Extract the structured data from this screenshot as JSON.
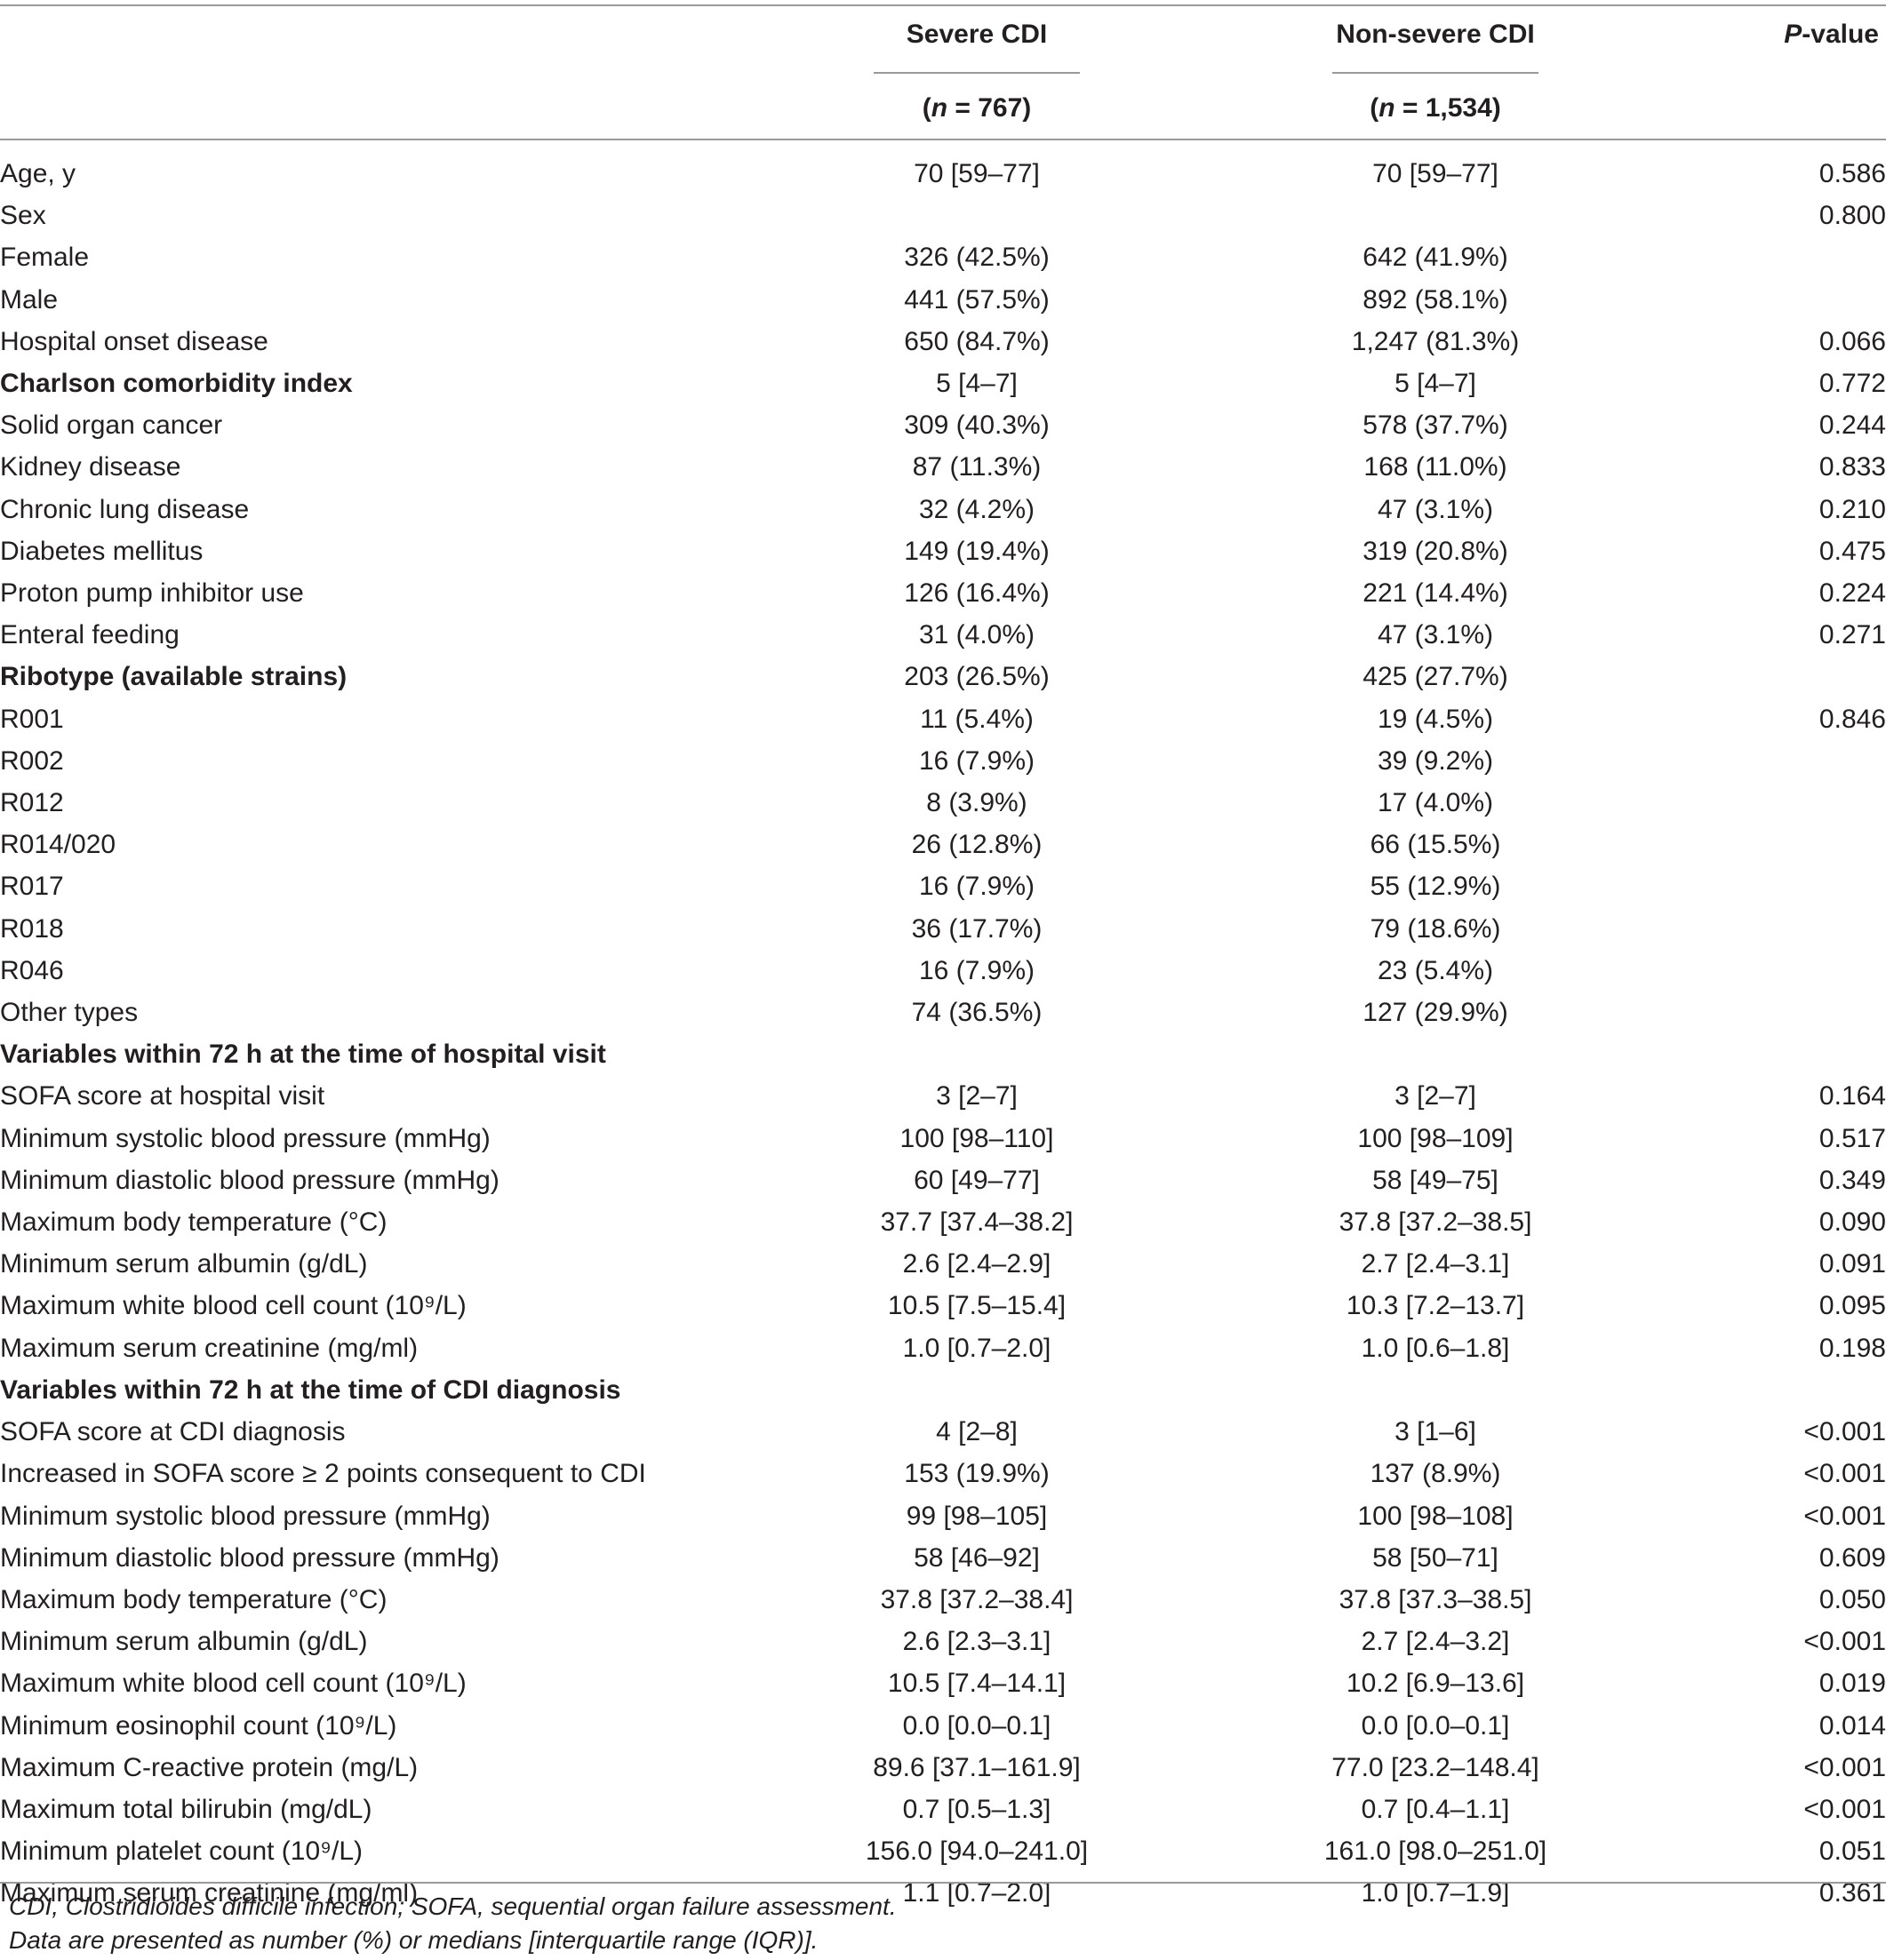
{
  "header": {
    "col_severe": "Severe CDI",
    "col_severe_n": "(n = 767)",
    "col_nonsevere": "Non-severe CDI",
    "col_nonsevere_n": "(n = 1,534)",
    "col_p": "P-value"
  },
  "rows": [
    {
      "label": "Age, y",
      "severe": "70 [59–77]",
      "nonsevere": "70 [59–77]",
      "p": "0.586",
      "bold": false
    },
    {
      "label": "Sex",
      "severe": "",
      "nonsevere": "",
      "p": "0.800",
      "bold": false
    },
    {
      "label": "Female",
      "severe": "326 (42.5%)",
      "nonsevere": "642 (41.9%)",
      "p": "",
      "bold": false
    },
    {
      "label": "Male",
      "severe": "441 (57.5%)",
      "nonsevere": "892 (58.1%)",
      "p": "",
      "bold": false
    },
    {
      "label": "Hospital onset disease",
      "severe": "650 (84.7%)",
      "nonsevere": "1,247 (81.3%)",
      "p": "0.066",
      "bold": false
    },
    {
      "label": "Charlson comorbidity index",
      "severe": "5 [4–7]",
      "nonsevere": "5 [4–7]",
      "p": "0.772",
      "bold": true
    },
    {
      "label": "Solid organ cancer",
      "severe": "309 (40.3%)",
      "nonsevere": "578 (37.7%)",
      "p": "0.244",
      "bold": false
    },
    {
      "label": "Kidney disease",
      "severe": "87 (11.3%)",
      "nonsevere": "168 (11.0%)",
      "p": "0.833",
      "bold": false
    },
    {
      "label": "Chronic lung disease",
      "severe": "32 (4.2%)",
      "nonsevere": "47 (3.1%)",
      "p": "0.210",
      "bold": false
    },
    {
      "label": "Diabetes mellitus",
      "severe": "149 (19.4%)",
      "nonsevere": "319 (20.8%)",
      "p": "0.475",
      "bold": false
    },
    {
      "label": "Proton pump inhibitor use",
      "severe": "126 (16.4%)",
      "nonsevere": "221 (14.4%)",
      "p": "0.224",
      "bold": false
    },
    {
      "label": "Enteral feeding",
      "severe": "31 (4.0%)",
      "nonsevere": "47 (3.1%)",
      "p": "0.271",
      "bold": false
    },
    {
      "label": "Ribotype (available strains)",
      "severe": "203 (26.5%)",
      "nonsevere": "425 (27.7%)",
      "p": "",
      "bold": true
    },
    {
      "label": "R001",
      "severe": "11 (5.4%)",
      "nonsevere": "19 (4.5%)",
      "p": "0.846",
      "bold": false
    },
    {
      "label": "R002",
      "severe": "16 (7.9%)",
      "nonsevere": "39 (9.2%)",
      "p": "",
      "bold": false
    },
    {
      "label": "R012",
      "severe": "8 (3.9%)",
      "nonsevere": "17 (4.0%)",
      "p": "",
      "bold": false
    },
    {
      "label": "R014/020",
      "severe": "26 (12.8%)",
      "nonsevere": "66 (15.5%)",
      "p": "",
      "bold": false
    },
    {
      "label": "R017",
      "severe": "16 (7.9%)",
      "nonsevere": "55 (12.9%)",
      "p": "",
      "bold": false
    },
    {
      "label": "R018",
      "severe": "36 (17.7%)",
      "nonsevere": "79 (18.6%)",
      "p": "",
      "bold": false
    },
    {
      "label": "R046",
      "severe": "16 (7.9%)",
      "nonsevere": "23 (5.4%)",
      "p": "",
      "bold": false
    },
    {
      "label": "Other types",
      "severe": "74 (36.5%)",
      "nonsevere": "127 (29.9%)",
      "p": "",
      "bold": false
    },
    {
      "label": "Variables within 72 h at the time of hospital visit",
      "severe": "",
      "nonsevere": "",
      "p": "",
      "bold": true
    },
    {
      "label": "SOFA score at hospital visit",
      "severe": "3 [2–7]",
      "nonsevere": "3 [2–7]",
      "p": "0.164",
      "bold": false
    },
    {
      "label": "Minimum systolic blood pressure (mmHg)",
      "severe": "100 [98–110]",
      "nonsevere": "100 [98–109]",
      "p": "0.517",
      "bold": false
    },
    {
      "label": "Minimum diastolic blood pressure (mmHg)",
      "severe": "60 [49–77]",
      "nonsevere": "58 [49–75]",
      "p": "0.349",
      "bold": false
    },
    {
      "label": "Maximum body temperature (°C)",
      "severe": "37.7 [37.4–38.2]",
      "nonsevere": "37.8 [37.2–38.5]",
      "p": "0.090",
      "bold": false
    },
    {
      "label": "Minimum serum albumin (g/dL)",
      "severe": "2.6 [2.4–2.9]",
      "nonsevere": "2.7 [2.4–3.1]",
      "p": "0.091",
      "bold": false
    },
    {
      "label": "Maximum white blood cell count (10⁹/L)",
      "severe": "10.5 [7.5–15.4]",
      "nonsevere": "10.3 [7.2–13.7]",
      "p": "0.095",
      "bold": false
    },
    {
      "label": "Maximum serum creatinine (mg/ml)",
      "severe": "1.0 [0.7–2.0]",
      "nonsevere": "1.0 [0.6–1.8]",
      "p": "0.198",
      "bold": false
    },
    {
      "label": "Variables within 72 h at the time of CDI diagnosis",
      "severe": "",
      "nonsevere": "",
      "p": "",
      "bold": true
    },
    {
      "label": "SOFA score at CDI diagnosis",
      "severe": "4 [2–8]",
      "nonsevere": "3 [1–6]",
      "p": "<0.001",
      "bold": false
    },
    {
      "label": "Increased in SOFA score ≥ 2 points consequent to CDI",
      "severe": "153 (19.9%)",
      "nonsevere": "137 (8.9%)",
      "p": "<0.001",
      "bold": false
    },
    {
      "label": "Minimum systolic blood pressure (mmHg)",
      "severe": "99 [98–105]",
      "nonsevere": "100 [98–108]",
      "p": "<0.001",
      "bold": false
    },
    {
      "label": "Minimum diastolic blood pressure (mmHg)",
      "severe": "58 [46–92]",
      "nonsevere": "58 [50–71]",
      "p": "0.609",
      "bold": false
    },
    {
      "label": "Maximum body temperature (°C)",
      "severe": "37.8 [37.2–38.4]",
      "nonsevere": "37.8 [37.3–38.5]",
      "p": "0.050",
      "bold": false
    },
    {
      "label": "Minimum serum albumin (g/dL)",
      "severe": "2.6 [2.3–3.1]",
      "nonsevere": "2.7 [2.4–3.2]",
      "p": "<0.001",
      "bold": false
    },
    {
      "label": "Maximum white blood cell count (10⁹/L)",
      "severe": "10.5 [7.4–14.1]",
      "nonsevere": "10.2 [6.9–13.6]",
      "p": "0.019",
      "bold": false
    },
    {
      "label": "Minimum eosinophil count (10⁹/L)",
      "severe": "0.0 [0.0–0.1]",
      "nonsevere": "0.0 [0.0–0.1]",
      "p": "0.014",
      "bold": false
    },
    {
      "label": "Maximum C-reactive protein (mg/L)",
      "severe": "89.6 [37.1–161.9]",
      "nonsevere": "77.0 [23.2–148.4]",
      "p": "<0.001",
      "bold": false
    },
    {
      "label": "Maximum total bilirubin (mg/dL)",
      "severe": "0.7 [0.5–1.3]",
      "nonsevere": "0.7 [0.4–1.1]",
      "p": "<0.001",
      "bold": false
    },
    {
      "label": "Minimum platelet count (10⁹/L)",
      "severe": "156.0 [94.0–241.0]",
      "nonsevere": "161.0 [98.0–251.0]",
      "p": "0.051",
      "bold": false
    },
    {
      "label": "Maximum serum creatinine (mg/ml)",
      "severe": "1.1 [0.7–2.0]",
      "nonsevere": "1.0 [0.7–1.9]",
      "p": "0.361",
      "bold": false
    }
  ],
  "footnotes": {
    "abbrev": "CDI, Clostridioides difficile infection; SOFA, sequential organ failure assessment.",
    "presentation": "Data are presented as number (%) or medians [interquartile range (IQR)]."
  }
}
